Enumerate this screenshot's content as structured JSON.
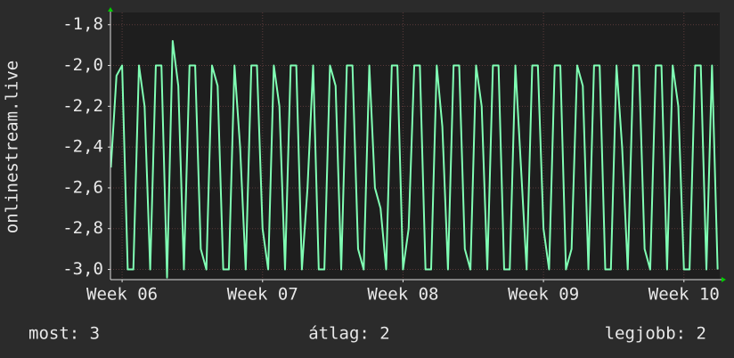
{
  "chart_data": {
    "type": "line",
    "y_label": "onlinestream.live",
    "x": [
      5.92,
      5.96,
      6.0,
      6.04,
      6.08,
      6.12,
      6.16,
      6.2,
      6.24,
      6.28,
      6.32,
      6.36,
      6.4,
      6.44,
      6.48,
      6.52,
      6.56,
      6.6,
      6.64,
      6.68,
      6.72,
      6.76,
      6.8,
      6.84,
      6.88,
      6.92,
      6.96,
      7.0,
      7.04,
      7.08,
      7.12,
      7.16,
      7.2,
      7.24,
      7.28,
      7.32,
      7.36,
      7.4,
      7.44,
      7.48,
      7.52,
      7.56,
      7.6,
      7.64,
      7.68,
      7.72,
      7.76,
      7.8,
      7.84,
      7.88,
      7.92,
      7.96,
      8.0,
      8.04,
      8.08,
      8.12,
      8.16,
      8.2,
      8.24,
      8.28,
      8.32,
      8.36,
      8.4,
      8.44,
      8.48,
      8.52,
      8.56,
      8.6,
      8.64,
      8.68,
      8.72,
      8.76,
      8.8,
      8.84,
      8.88,
      8.92,
      8.96,
      9.0,
      9.04,
      9.08,
      9.12,
      9.16,
      9.2,
      9.24,
      9.28,
      9.32,
      9.36,
      9.4,
      9.44,
      9.48,
      9.52,
      9.56,
      9.6,
      9.64,
      9.68,
      9.72,
      9.76,
      9.8,
      9.84,
      9.88,
      9.92,
      9.96,
      10.0,
      10.04,
      10.08,
      10.12,
      10.16,
      10.2,
      10.24
    ],
    "series": [
      {
        "color": "#80ffb4",
        "values": [
          -2.5,
          -2.05,
          -2.0,
          -3.0,
          -3.0,
          -2.0,
          -2.2,
          -3.0,
          -2.0,
          -2.0,
          -3.04,
          -1.88,
          -2.1,
          -3.0,
          -2.0,
          -2.0,
          -2.9,
          -3.0,
          -2.0,
          -2.1,
          -3.0,
          -3.0,
          -2.0,
          -2.4,
          -3.0,
          -2.0,
          -2.0,
          -2.8,
          -3.0,
          -2.0,
          -2.2,
          -3.0,
          -2.0,
          -2.0,
          -3.0,
          -2.6,
          -2.0,
          -3.0,
          -3.0,
          -2.0,
          -2.1,
          -3.0,
          -2.0,
          -2.0,
          -2.9,
          -3.0,
          -2.0,
          -2.6,
          -2.7,
          -3.0,
          -2.0,
          -2.0,
          -3.0,
          -2.8,
          -2.0,
          -2.0,
          -3.0,
          -3.0,
          -2.0,
          -2.3,
          -3.0,
          -2.0,
          -2.0,
          -2.9,
          -3.0,
          -2.0,
          -2.2,
          -3.0,
          -2.0,
          -2.0,
          -3.0,
          -3.0,
          -2.0,
          -2.5,
          -3.0,
          -2.0,
          -2.0,
          -2.8,
          -3.0,
          -2.0,
          -2.0,
          -3.0,
          -2.9,
          -2.0,
          -2.1,
          -3.0,
          -2.0,
          -2.0,
          -3.0,
          -3.0,
          -2.0,
          -2.4,
          -3.0,
          -2.0,
          -2.0,
          -2.9,
          -3.0,
          -2.0,
          -2.0,
          -3.0,
          -2.0,
          -2.2,
          -3.0,
          -3.0,
          -2.0,
          -2.0,
          -3.0,
          -2.0,
          -3.0
        ]
      }
    ],
    "xlim": [
      5.917,
      10.255
    ],
    "xticks": [
      {
        "value": 6,
        "label": "Week 06"
      },
      {
        "value": 7,
        "label": "Week 07"
      },
      {
        "value": 8,
        "label": "Week 08"
      },
      {
        "value": 9,
        "label": "Week 09"
      },
      {
        "value": 10,
        "label": "Week 10"
      }
    ],
    "ylim": [
      -3.05,
      -1.74
    ],
    "yticks": [
      {
        "value": -3.0,
        "label": "-3,0"
      },
      {
        "value": -2.8,
        "label": "-2,8"
      },
      {
        "value": -2.6,
        "label": "-2,6"
      },
      {
        "value": -2.4,
        "label": "-2,4"
      },
      {
        "value": -2.2,
        "label": "-2,2"
      },
      {
        "value": -2.0,
        "label": "-2,0"
      },
      {
        "value": -1.8,
        "label": "-1,8"
      }
    ],
    "grid": true,
    "legend": [
      "most: 3",
      "átlag: 2",
      "legjobb: 2"
    ]
  }
}
